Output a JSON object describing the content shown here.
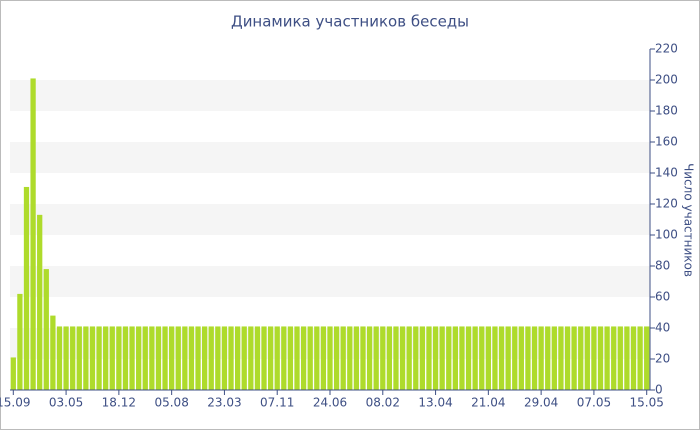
{
  "chart_data": {
    "type": "bar",
    "title": "Динамика участников беседы",
    "y_label": "Число участников",
    "categories": [
      "15.09",
      null,
      null,
      null,
      null,
      null,
      null,
      null,
      "03.05",
      null,
      null,
      null,
      null,
      null,
      null,
      null,
      "18.12",
      null,
      null,
      null,
      null,
      null,
      null,
      null,
      "05.08",
      null,
      null,
      null,
      null,
      null,
      null,
      null,
      "23.03",
      null,
      null,
      null,
      null,
      null,
      null,
      null,
      "07.11",
      null,
      null,
      null,
      null,
      null,
      null,
      null,
      "24.06",
      null,
      null,
      null,
      null,
      null,
      null,
      null,
      "08.02",
      null,
      null,
      null,
      null,
      null,
      null,
      null,
      "13.04",
      null,
      null,
      null,
      null,
      null,
      null,
      null,
      "21.04",
      null,
      null,
      null,
      null,
      null,
      null,
      null,
      "29.04",
      null,
      null,
      null,
      null,
      null,
      null,
      null,
      "07.05",
      null,
      null,
      null,
      null,
      null,
      null,
      null,
      "15.05"
    ],
    "values": [
      21,
      62,
      131,
      201,
      113,
      78,
      48,
      41,
      41,
      41,
      41,
      41,
      41,
      41,
      41,
      41,
      41,
      41,
      41,
      41,
      41,
      41,
      41,
      41,
      41,
      41,
      41,
      41,
      41,
      41,
      41,
      41,
      41,
      41,
      41,
      41,
      41,
      41,
      41,
      41,
      41,
      41,
      41,
      41,
      41,
      41,
      41,
      41,
      41,
      41,
      41,
      41,
      41,
      41,
      41,
      41,
      41,
      41,
      41,
      41,
      41,
      41,
      41,
      41,
      41,
      41,
      41,
      41,
      41,
      41,
      41,
      41,
      41,
      41,
      41,
      41,
      41,
      41,
      41,
      41,
      41,
      41,
      41,
      41,
      41,
      41,
      41,
      41,
      41,
      41,
      41,
      41,
      41,
      41,
      41,
      41,
      41
    ],
    "color": "#aedb2b",
    "ylim": [
      0,
      220
    ],
    "yticks": [
      0,
      20,
      40,
      60,
      80,
      100,
      120,
      140,
      160,
      180,
      200,
      220
    ],
    "grid": "bands"
  }
}
